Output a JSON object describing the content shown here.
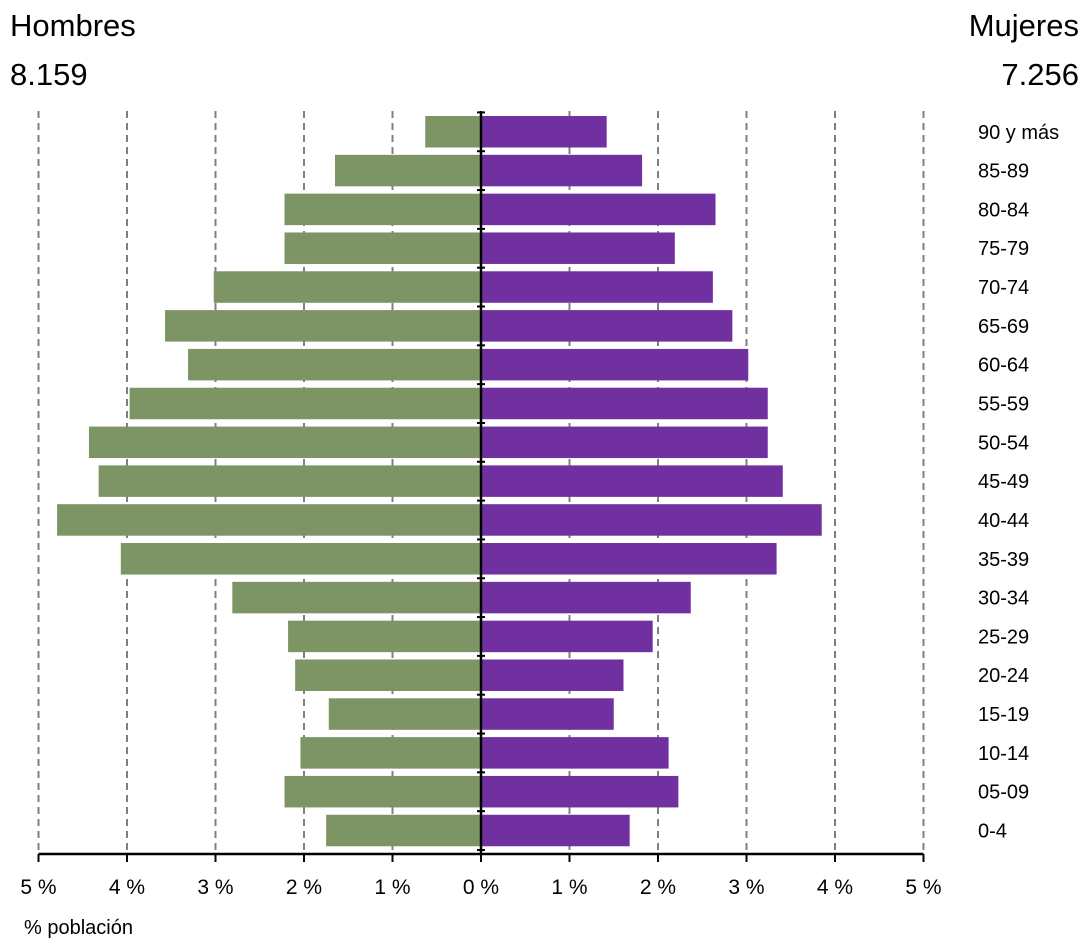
{
  "header": {
    "left_label": "Hombres",
    "left_total": "8.159",
    "right_label": "Mujeres",
    "right_total": "7.256"
  },
  "colors": {
    "left": "#7d9464",
    "right": "#7030a0",
    "grid": "#808080",
    "axis": "#000000"
  },
  "chart_data": {
    "type": "bar",
    "orientation": "horizontal",
    "layout": "population-pyramid",
    "xlabel": "% población",
    "xlim": [
      -5,
      5
    ],
    "xticks": [
      "5 %",
      "4 %",
      "3 %",
      "2 %",
      "1 %",
      "0 %",
      "1 %",
      "2 %",
      "3 %",
      "4 %",
      "5 %"
    ],
    "grid": true,
    "categories": [
      "90 y más",
      "85-89",
      "80-84",
      "75-79",
      "70-74",
      "65-69",
      "60-64",
      "55-59",
      "50-54",
      "45-49",
      "40-44",
      "35-39",
      "30-34",
      "25-29",
      "20-24",
      "15-19",
      "10-14",
      "05-09",
      "0-4"
    ],
    "series": [
      {
        "name": "Hombres",
        "side": "left",
        "values": [
          0.63,
          1.65,
          2.22,
          2.22,
          3.02,
          3.57,
          3.31,
          3.97,
          4.43,
          4.32,
          4.79,
          4.07,
          2.81,
          2.18,
          2.1,
          1.72,
          2.04,
          2.22,
          1.75
        ]
      },
      {
        "name": "Mujeres",
        "side": "right",
        "values": [
          1.42,
          1.82,
          2.65,
          2.19,
          2.62,
          2.84,
          3.02,
          3.24,
          3.24,
          3.41,
          3.85,
          3.34,
          2.37,
          1.94,
          1.61,
          1.5,
          2.12,
          2.23,
          1.68
        ]
      }
    ]
  }
}
